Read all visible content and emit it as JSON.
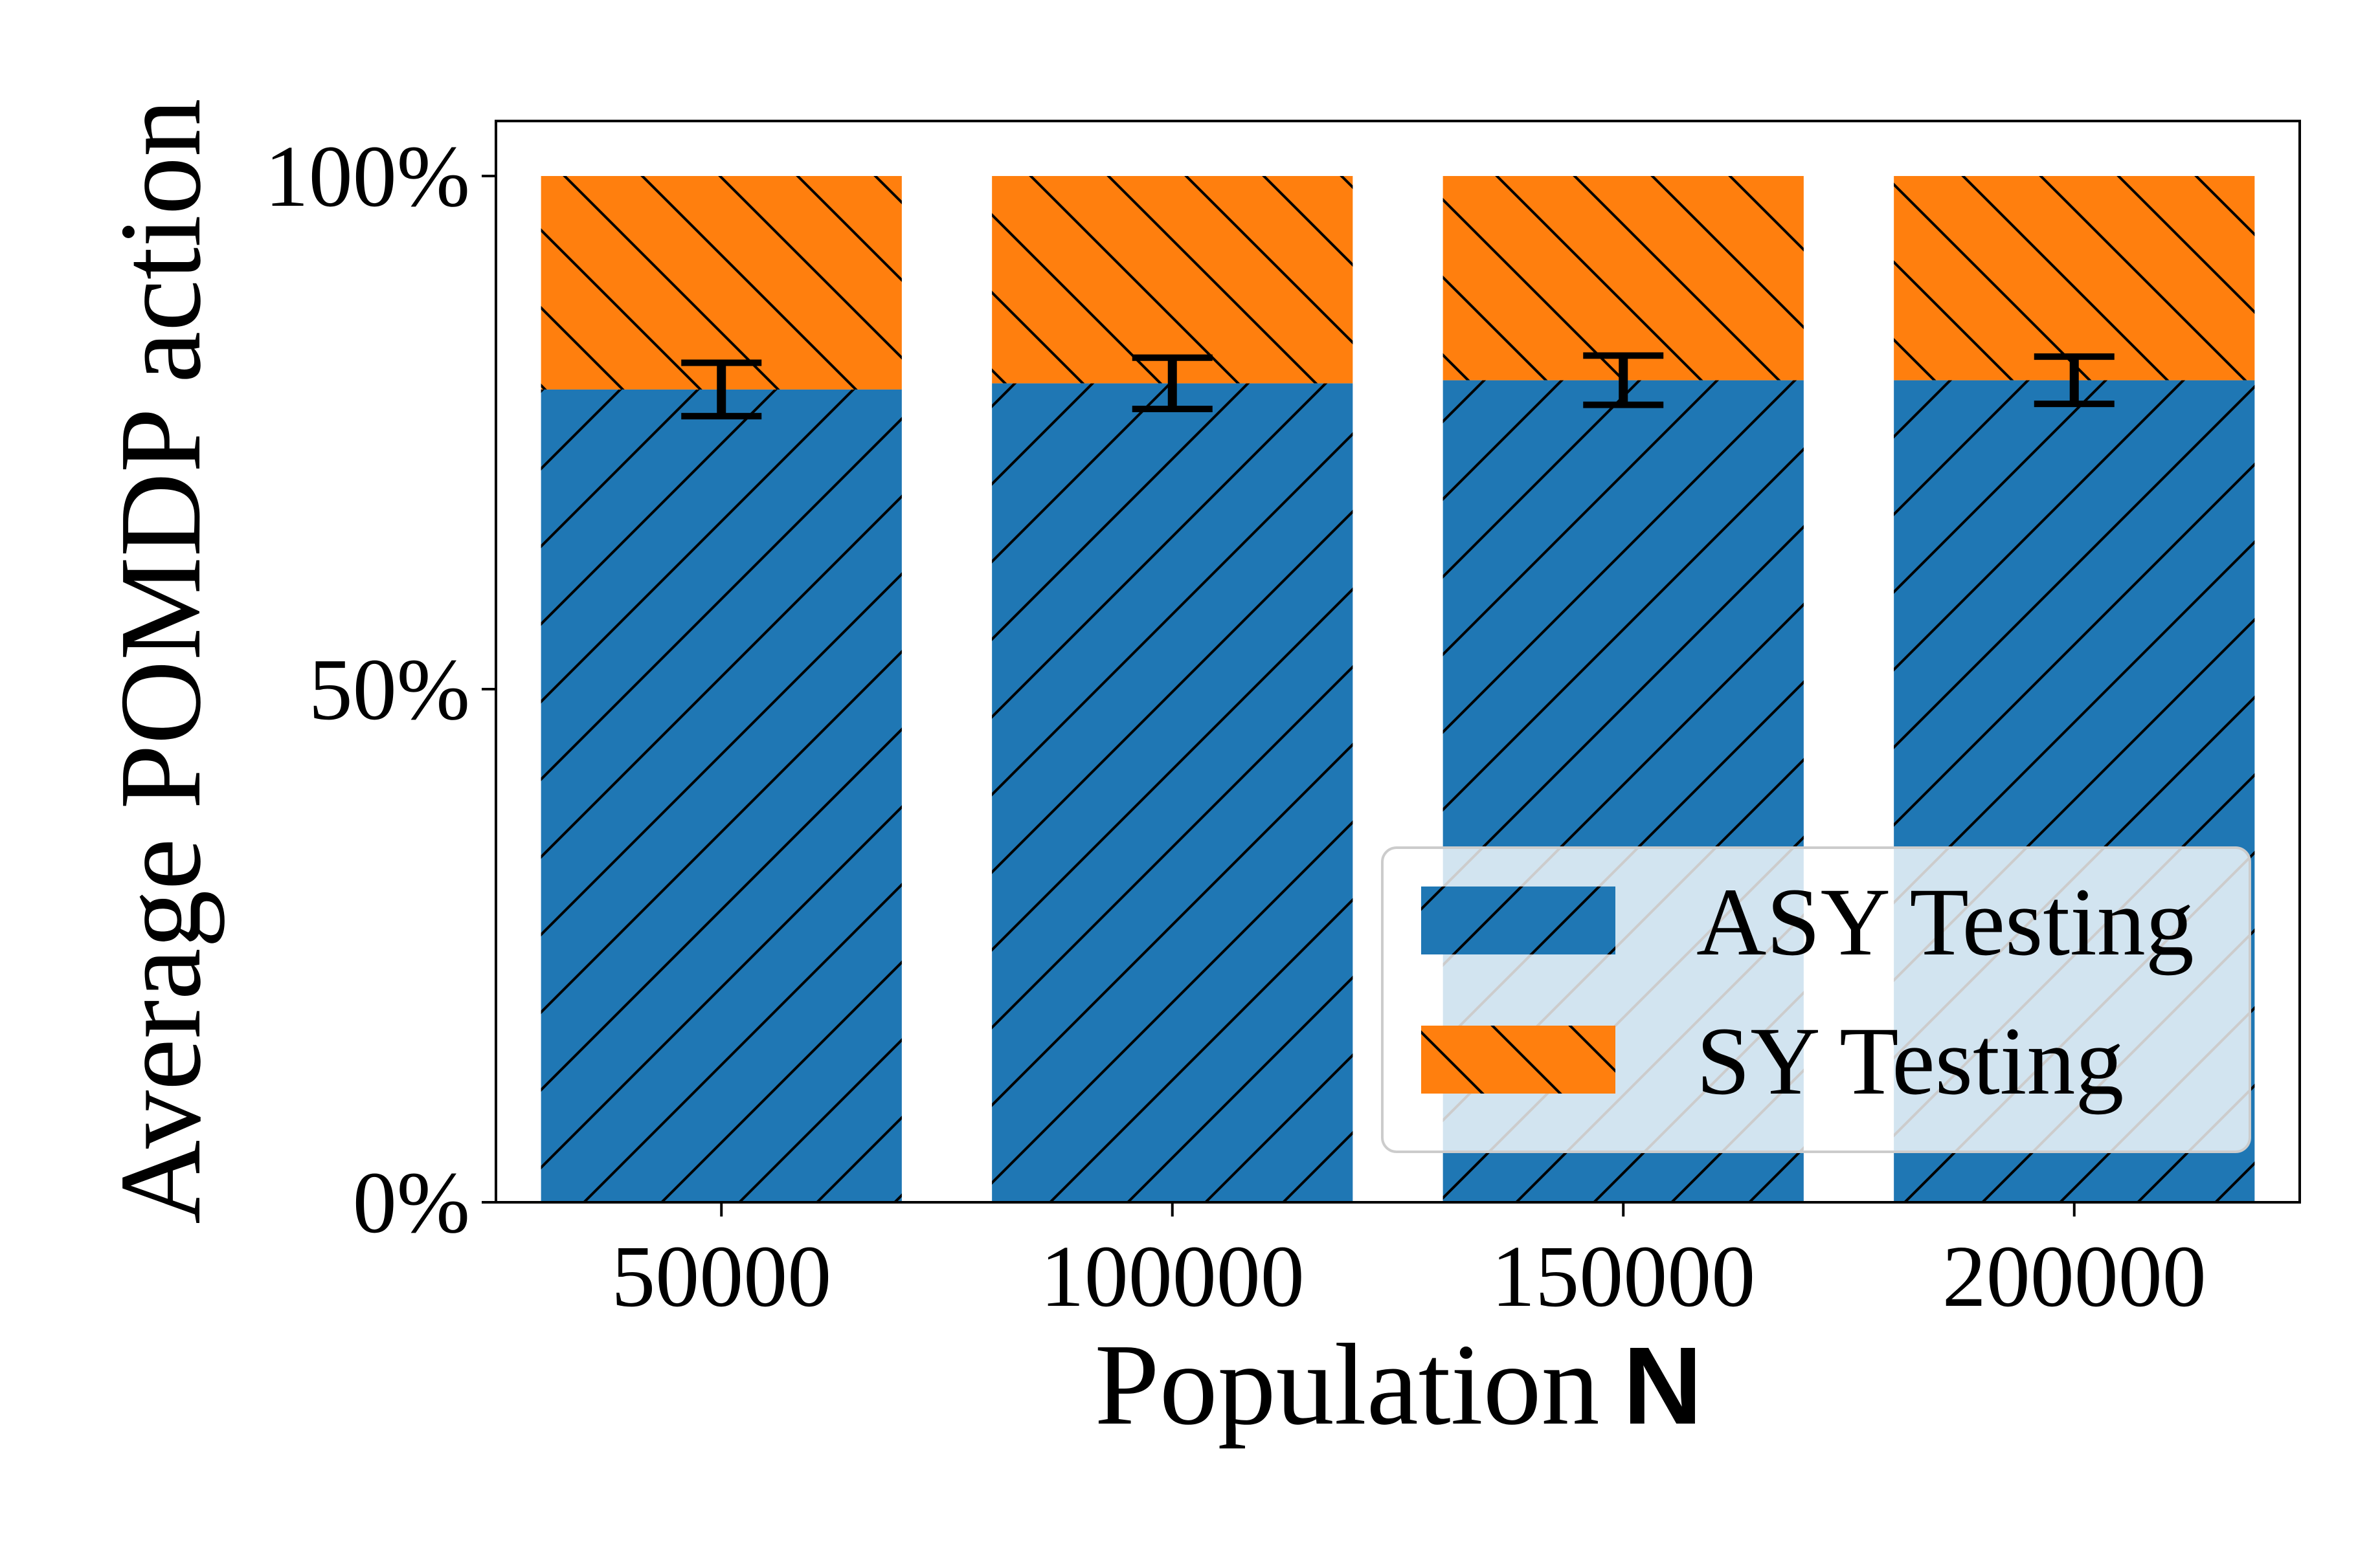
{
  "chart_data": {
    "type": "bar",
    "stacked": true,
    "categories": [
      "50000",
      "100000",
      "150000",
      "200000"
    ],
    "series": [
      {
        "name": "ASY Testing",
        "values": [
          79.2,
          79.8,
          80.1,
          80.1
        ],
        "color": "#1f77b4",
        "hatch": "/"
      },
      {
        "name": "SY Testing",
        "values": [
          20.8,
          20.2,
          19.9,
          19.9
        ],
        "color": "#ff7f0e",
        "hatch": "\\"
      }
    ],
    "error_bars": {
      "series": "ASY Testing",
      "errors": [
        2.6,
        2.5,
        2.4,
        2.3
      ]
    },
    "xlabel": {
      "text": "Population",
      "bold_symbol": "N"
    },
    "ylabel": "Average POMDP action",
    "yticks": [
      {
        "value": 0,
        "label": "0%"
      },
      {
        "value": 50,
        "label": "50%"
      },
      {
        "value": 100,
        "label": "100%"
      }
    ],
    "ylim": [
      0,
      105
    ],
    "grid": false,
    "legend": {
      "position": "lower-right"
    }
  }
}
